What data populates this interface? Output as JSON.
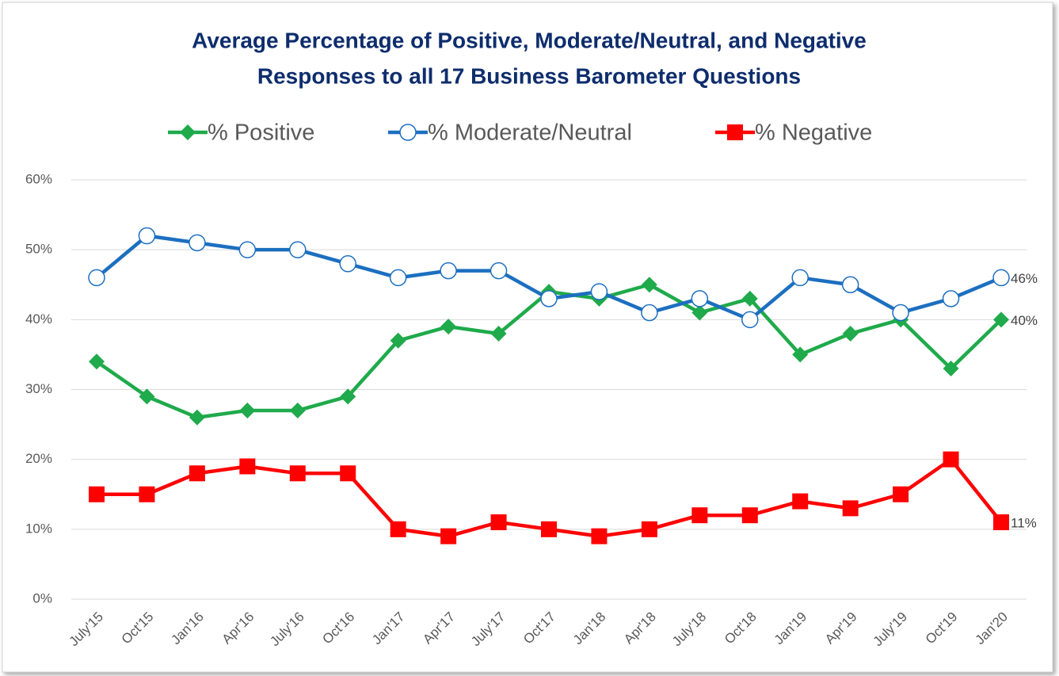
{
  "chart_data": {
    "type": "line",
    "title": [
      "Average Percentage of Positive, Moderate/Neutral, and Negative",
      "Responses to all 17 Business Barometer Questions"
    ],
    "categories": [
      "July'15",
      "Oct'15",
      "Jan'16",
      "Apr'16",
      "July'16",
      "Oct'16",
      "Jan'17",
      "Apr'17",
      "July'17",
      "Oct'17",
      "Jan'18",
      "Apr'18",
      "July'18",
      "Oct'18",
      "Jan'19",
      "Apr'19",
      "July'19",
      "Oct'19",
      "Jan'20"
    ],
    "series": [
      {
        "name": "% Positive",
        "color": "#1faa4b",
        "marker": "diamond",
        "values": [
          34,
          29,
          26,
          27,
          27,
          29,
          37,
          39,
          38,
          44,
          43,
          45,
          41,
          43,
          35,
          38,
          40,
          33,
          40
        ],
        "value_labels": [
          null,
          null,
          null,
          null,
          null,
          null,
          null,
          null,
          null,
          null,
          null,
          null,
          null,
          null,
          null,
          null,
          null,
          null,
          "40%"
        ]
      },
      {
        "name": "% Moderate/Neutral",
        "color": "#1c6fc0",
        "marker": "circle",
        "values": [
          46,
          52,
          51,
          50,
          50,
          48,
          46,
          47,
          47,
          43,
          44,
          41,
          43,
          40,
          46,
          45,
          41,
          43,
          46
        ],
        "value_labels": [
          null,
          null,
          null,
          null,
          null,
          null,
          null,
          null,
          null,
          null,
          null,
          null,
          null,
          null,
          null,
          null,
          null,
          null,
          "46%"
        ]
      },
      {
        "name": "% Negative",
        "color": "#ff0000",
        "marker": "square",
        "values": [
          15,
          15,
          18,
          19,
          18,
          18,
          10,
          9,
          11,
          10,
          9,
          10,
          12,
          12,
          14,
          13,
          15,
          20,
          11
        ],
        "value_labels": [
          null,
          null,
          null,
          null,
          null,
          null,
          null,
          null,
          null,
          null,
          null,
          null,
          null,
          null,
          null,
          null,
          null,
          null,
          "11%"
        ]
      }
    ],
    "ylim": [
      0,
      60
    ],
    "yticks": [
      {
        "value": 0,
        "label": "0%"
      },
      {
        "value": 10,
        "label": "10%"
      },
      {
        "value": 20,
        "label": "20%"
      },
      {
        "value": 30,
        "label": "30%"
      },
      {
        "value": 40,
        "label": "40%"
      },
      {
        "value": 50,
        "label": "50%"
      },
      {
        "value": 60,
        "label": "60%"
      }
    ],
    "grid": true,
    "legend": "top"
  }
}
